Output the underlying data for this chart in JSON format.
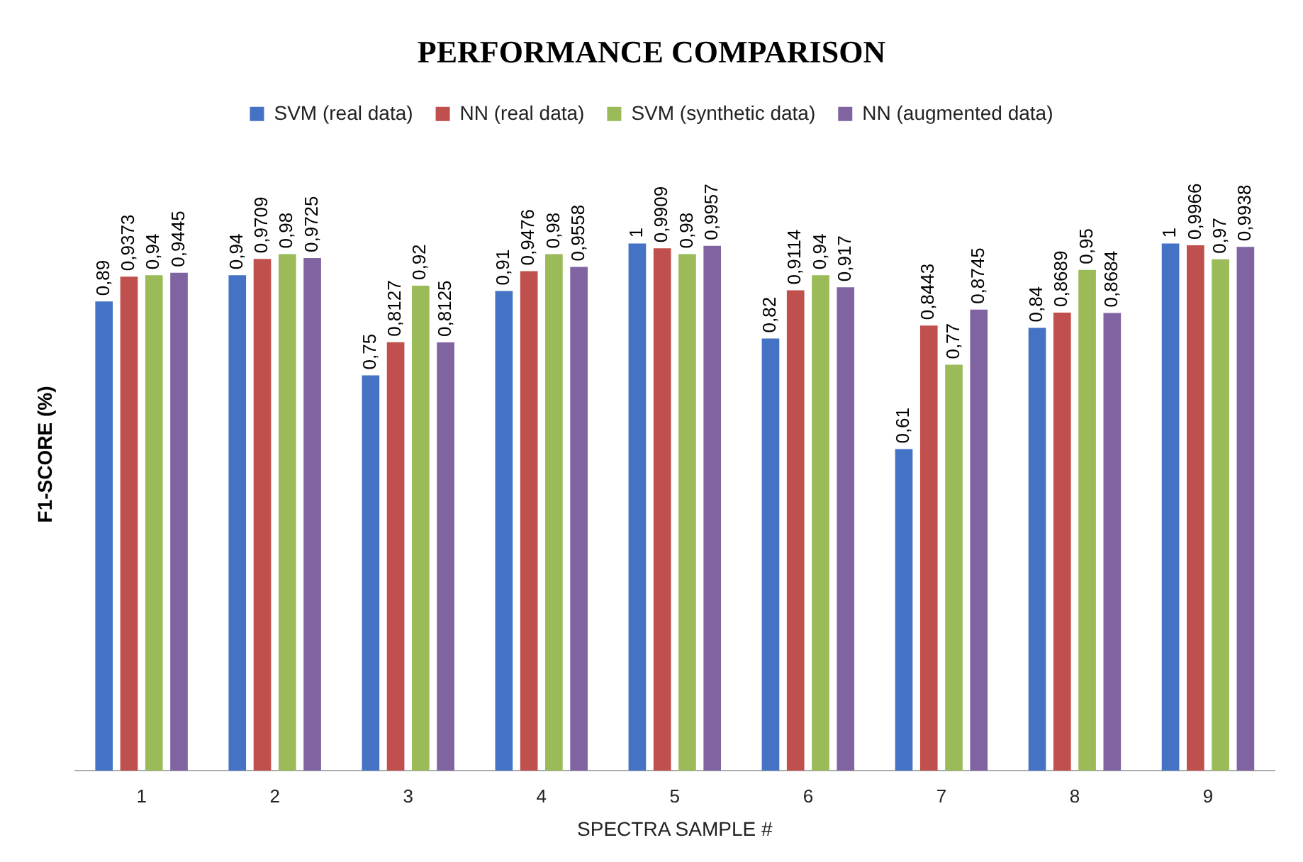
{
  "chart_data": {
    "type": "bar",
    "title": "PERFORMANCE COMPARISON",
    "xlabel": "SPECTRA SAMPLE #",
    "ylabel": "F1-SCORE (%)",
    "categories": [
      "1",
      "2",
      "3",
      "4",
      "5",
      "6",
      "7",
      "8",
      "9"
    ],
    "grid": false,
    "legend": "top",
    "tick_labels": "x",
    "series": [
      {
        "name": "SVM (real data)",
        "color": "#4472c4",
        "values": [
          0.89,
          0.94,
          0.75,
          0.91,
          1,
          0.82,
          0.61,
          0.84,
          1
        ],
        "value_labels": [
          "0,89",
          "0,94",
          "0,75",
          "0,91",
          "1",
          "0,82",
          "0,61",
          "0,84",
          "1"
        ]
      },
      {
        "name": "NN (real data)",
        "color": "#c0504d",
        "values": [
          0.9373,
          0.9709,
          0.8127,
          0.9476,
          0.9909,
          0.9114,
          0.8443,
          0.8689,
          0.9966
        ],
        "value_labels": [
          "0,9373",
          "0,9709",
          "0,8127",
          "0,9476",
          "0,9909",
          "0,9114",
          "0,8443",
          "0,8689",
          "0,9966"
        ]
      },
      {
        "name": "SVM (synthetic data)",
        "color": "#9bbb59",
        "values": [
          0.94,
          0.98,
          0.92,
          0.98,
          0.98,
          0.94,
          0.77,
          0.95,
          0.97
        ],
        "value_labels": [
          "0,94",
          "0,98",
          "0,92",
          "0,98",
          "0,98",
          "0,94",
          "0,77",
          "0,95",
          "0,97"
        ]
      },
      {
        "name": "NN (augmented data)",
        "color": "#8064a2",
        "values": [
          0.9445,
          0.9725,
          0.8125,
          0.9558,
          0.9957,
          0.917,
          0.8745,
          0.8684,
          0.9938
        ],
        "value_labels": [
          "0,9445",
          "0,9725",
          "0,8125",
          "0,9558",
          "0,9957",
          "0,917",
          "0,8745",
          "0,8684",
          "0,9938"
        ]
      }
    ]
  }
}
